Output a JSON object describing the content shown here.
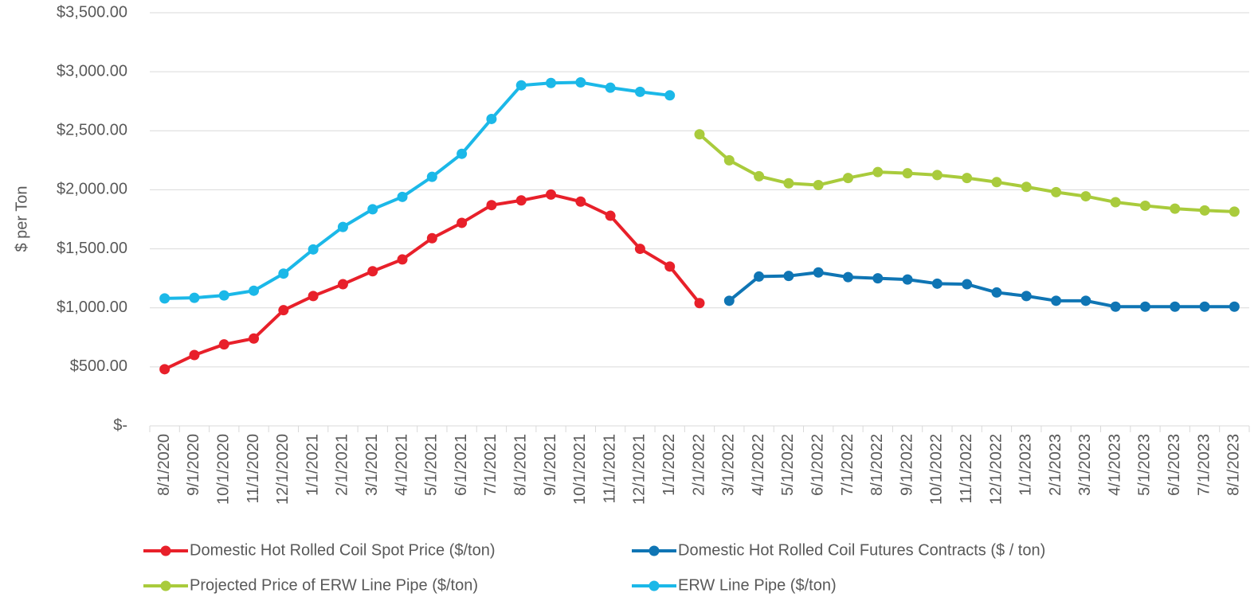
{
  "chart_data": {
    "type": "line",
    "y_label": "$ per Ton",
    "categories": [
      "8/1/2020",
      "9/1/2020",
      "10/1/2020",
      "11/1/2020",
      "12/1/2020",
      "1/1/2021",
      "2/1/2021",
      "3/1/2021",
      "4/1/2021",
      "5/1/2021",
      "6/1/2021",
      "7/1/2021",
      "8/1/2021",
      "9/1/2021",
      "10/1/2021",
      "11/1/2021",
      "12/1/2021",
      "1/1/2022",
      "2/1/2022",
      "3/1/2022",
      "4/1/2022",
      "5/1/2022",
      "6/1/2022",
      "7/1/2022",
      "8/1/2022",
      "9/1/2022",
      "10/1/2022",
      "11/1/2022",
      "12/1/2022",
      "1/1/2023",
      "2/1/2023",
      "3/1/2023",
      "4/1/2023",
      "5/1/2023",
      "6/1/2023",
      "7/1/2023",
      "8/1/2023"
    ],
    "series": [
      {
        "name": "Domestic Hot Rolled Coil Spot Price ($/ton)",
        "color": "#e8202a",
        "values": [
          480,
          600,
          690,
          740,
          980,
          1100,
          1200,
          1310,
          1410,
          1590,
          1720,
          1870,
          1910,
          1960,
          1900,
          1780,
          1500,
          1350,
          1040,
          null,
          null,
          null,
          null,
          null,
          null,
          null,
          null,
          null,
          null,
          null,
          null,
          null,
          null,
          null,
          null,
          null,
          null
        ]
      },
      {
        "name": "Domestic Hot Rolled Coil Futures Contracts ($ / ton)",
        "color": "#0f75b4",
        "values": [
          null,
          null,
          null,
          null,
          null,
          null,
          null,
          null,
          null,
          null,
          null,
          null,
          null,
          null,
          null,
          null,
          null,
          null,
          null,
          1060,
          1265,
          1270,
          1300,
          1260,
          1250,
          1240,
          1205,
          1200,
          1130,
          1100,
          1060,
          1060,
          1010,
          1010,
          1010,
          1010,
          1010
        ]
      },
      {
        "name": "Projected Price of ERW Line Pipe ($/ton)",
        "color": "#a9cb3c",
        "values": [
          null,
          null,
          null,
          null,
          null,
          null,
          null,
          null,
          null,
          null,
          null,
          null,
          null,
          null,
          null,
          null,
          null,
          null,
          2470,
          2250,
          2115,
          2055,
          2040,
          2100,
          2150,
          2140,
          2125,
          2100,
          2065,
          2025,
          1980,
          1945,
          1895,
          1865,
          1840,
          1825,
          1815
        ]
      },
      {
        "name": "ERW Line Pipe ($/ton)",
        "color": "#1bb8e8",
        "values": [
          1080,
          1085,
          1105,
          1145,
          1290,
          1495,
          1685,
          1835,
          1940,
          2110,
          2305,
          2600,
          2885,
          2905,
          2910,
          2865,
          2830,
          2800,
          null,
          null,
          null,
          null,
          null,
          null,
          null,
          null,
          null,
          null,
          null,
          null,
          null,
          null,
          null,
          null,
          null,
          null,
          null
        ]
      }
    ],
    "ylim": [
      0,
      3500
    ],
    "yticks": [
      {
        "value": 0,
        "label": "$-"
      },
      {
        "value": 500,
        "label": "$500.00"
      },
      {
        "value": 1000,
        "label": "$1,000.00"
      },
      {
        "value": 1500,
        "label": "$1,500.00"
      },
      {
        "value": 2000,
        "label": "$2,000.00"
      },
      {
        "value": 2500,
        "label": "$2,500.00"
      },
      {
        "value": 3000,
        "label": "$3,000.00"
      },
      {
        "value": 3500,
        "label": "$3,500.00"
      }
    ],
    "grid": true,
    "legend": "bottom"
  }
}
